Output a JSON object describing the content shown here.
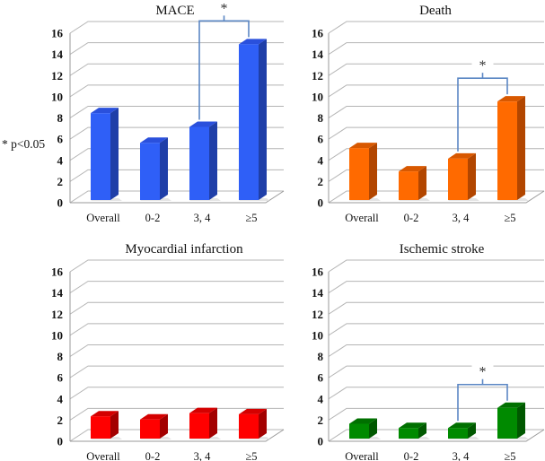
{
  "note": "* p<0.05",
  "chart_data": [
    {
      "type": "bar",
      "title": "MACE",
      "categories": [
        "Overall",
        "0-2",
        "3, 4",
        "≥5"
      ],
      "values": [
        8.2,
        5.4,
        6.9,
        14.7
      ],
      "ylim": [
        0,
        16
      ],
      "yticks": [
        "0",
        "2",
        "4",
        "6",
        "8",
        "10",
        "12",
        "14",
        "16"
      ],
      "xlabel": "",
      "ylabel": "",
      "grid": true,
      "colors": {
        "front": "#2f5ff7",
        "side": "#1f3fa8",
        "top": "#2a50dc"
      },
      "significance": {
        "between": [
          "3, 4",
          "≥5"
        ],
        "label": "*"
      }
    },
    {
      "type": "bar",
      "title": "Death",
      "categories": [
        "Overall",
        "0-2",
        "3, 4",
        "≥5"
      ],
      "values": [
        4.9,
        2.7,
        3.9,
        9.3
      ],
      "ylim": [
        0,
        16
      ],
      "yticks": [
        "0",
        "2",
        "4",
        "6",
        "8",
        "10",
        "12",
        "14",
        "16"
      ],
      "xlabel": "",
      "ylabel": "",
      "grid": true,
      "colors": {
        "front": "#ff6a00",
        "side": "#b24600",
        "top": "#d85800"
      },
      "significance": {
        "between": [
          "3, 4",
          "≥5"
        ],
        "label": "*"
      }
    },
    {
      "type": "bar",
      "title": "Myocardial infarction",
      "categories": [
        "Overall",
        "0-2",
        "3, 4",
        "≥5"
      ],
      "values": [
        2.1,
        1.8,
        2.4,
        2.3
      ],
      "ylim": [
        0,
        16
      ],
      "yticks": [
        "0",
        "2",
        "4",
        "6",
        "8",
        "10",
        "12",
        "14",
        "16"
      ],
      "xlabel": "",
      "ylabel": "",
      "grid": true,
      "colors": {
        "front": "#ff0000",
        "side": "#a30000",
        "top": "#d40000"
      },
      "significance": null
    },
    {
      "type": "bar",
      "title": "Ischemic stroke",
      "categories": [
        "Overall",
        "0-2",
        "3, 4",
        "≥5"
      ],
      "values": [
        1.4,
        1.0,
        1.0,
        2.9
      ],
      "ylim": [
        0,
        16
      ],
      "yticks": [
        "0",
        "2",
        "4",
        "6",
        "8",
        "10",
        "12",
        "14",
        "16"
      ],
      "xlabel": "",
      "ylabel": "",
      "grid": true,
      "colors": {
        "front": "#008a00",
        "side": "#005800",
        "top": "#007000"
      },
      "significance": {
        "between": [
          "3, 4",
          "≥5"
        ],
        "label": "*"
      }
    }
  ]
}
